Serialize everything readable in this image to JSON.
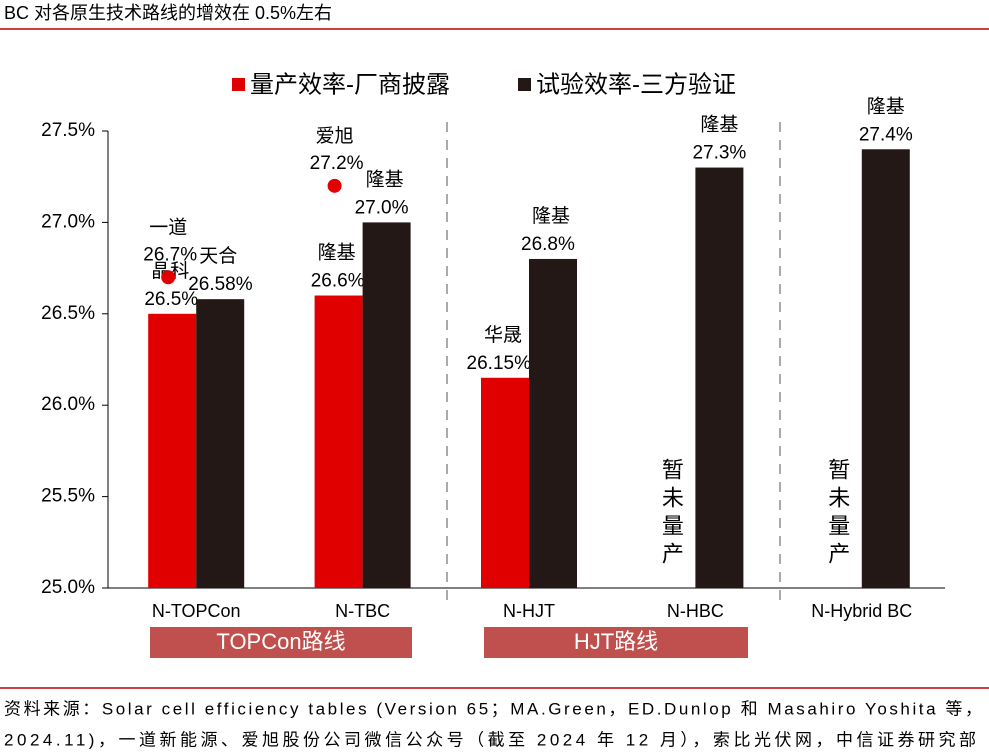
{
  "chart_data": {
    "type": "bar",
    "title": "BC 对各原生技术路线的增效在 0.5%左右",
    "categories": [
      "N-TOPCon",
      "N-TBC",
      "N-HJT",
      "N-HBC",
      "N-Hybrid BC"
    ],
    "series": [
      {
        "name": "量产效率-厂商披露",
        "color": "#e00000",
        "values": [
          26.5,
          26.6,
          26.15,
          null,
          null
        ],
        "value_labels": [
          "26.5%",
          "26.6%",
          "26.15%",
          null,
          null
        ],
        "makers": [
          "晶科",
          "隆基",
          "华晟",
          null,
          null
        ]
      },
      {
        "name": "试验效率-三方验证",
        "color": "#231815",
        "values": [
          26.58,
          27.0,
          26.8,
          27.3,
          27.4
        ],
        "value_labels": [
          "26.58%",
          "27.0%",
          "26.8%",
          "27.3%",
          "27.4%"
        ],
        "makers": [
          "天合",
          "隆基",
          "隆基",
          "隆基",
          "隆基"
        ]
      }
    ],
    "points": [
      {
        "name": "一道",
        "category": "N-TOPCon",
        "value": 26.7,
        "value_label": "26.7%"
      },
      {
        "name": "爱旭",
        "category": "N-TBC",
        "value": 27.2,
        "value_label": "27.2%"
      }
    ],
    "notes": [
      {
        "category": "N-HBC",
        "text": "暂未量产"
      },
      {
        "category": "N-Hybrid BC",
        "text": "暂未量产"
      }
    ],
    "groups": [
      "TOPCon路线",
      "HJT路线"
    ],
    "ylim": [
      25,
      27.5
    ],
    "yticks": [
      {
        "value": 25,
        "label": "25.0%"
      },
      {
        "value": 25.5,
        "label": "25.5%"
      },
      {
        "value": 26,
        "label": "26.0%"
      },
      {
        "value": 26.5,
        "label": "26.5%"
      },
      {
        "value": 27,
        "label": "27.0%"
      },
      {
        "value": 27.5,
        "label": "27.5%"
      }
    ],
    "grid": false,
    "source": [
      "资料来源：Solar cell efficiency tables (Version 65；MA.Green，ED.Dunlop 和 Masahiro Yoshita 等，",
      "2024.11)，一道新能源、爱旭股份公司微信公众号（截至 2024 年 12 月），索比光伏网，中信证券研究部"
    ]
  }
}
